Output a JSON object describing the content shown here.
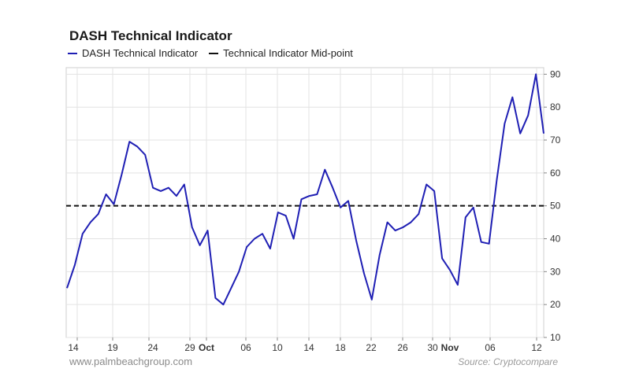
{
  "chart_data": {
    "type": "line",
    "title": "DASH Technical Indicator",
    "x_tick_labels": [
      "14",
      "19",
      "24",
      "29",
      "Oct",
      "06",
      "10",
      "14",
      "18",
      "22",
      "26",
      "30",
      "Nov",
      "06",
      "12"
    ],
    "y_ticks": [
      10,
      20,
      30,
      40,
      50,
      60,
      70,
      80,
      90
    ],
    "ylim": [
      10,
      92
    ],
    "grid": true,
    "legend_position": "top-left",
    "series": [
      {
        "name": "DASH Technical Indicator",
        "color": "#1f1fb4",
        "style": "solid",
        "values": [
          25,
          32,
          41.5,
          45,
          47.5,
          53.5,
          50.5,
          59.5,
          69.5,
          68,
          65.5,
          55.5,
          54.5,
          55.5,
          53,
          56.5,
          43.5,
          38,
          42.5,
          22,
          20,
          25,
          30,
          37.5,
          40,
          41.5,
          37,
          48,
          47,
          40,
          52,
          53,
          53.5,
          61,
          55.5,
          49.5,
          51.5,
          39.5,
          29.5,
          21.5,
          35,
          45,
          42.5,
          43.5,
          45,
          47.5,
          56.5,
          54.5,
          34,
          30.5,
          26,
          46.5,
          49.5,
          39,
          38.5,
          58,
          75,
          83,
          72,
          77.5,
          90,
          72
        ]
      },
      {
        "name": "Technical Indicator Mid-point",
        "color": "#111111",
        "style": "dashed",
        "values": [
          50,
          50
        ]
      }
    ]
  },
  "footer": {
    "left": "www.palmbeachgroup.com",
    "right": "Source: Cryptocompare"
  }
}
